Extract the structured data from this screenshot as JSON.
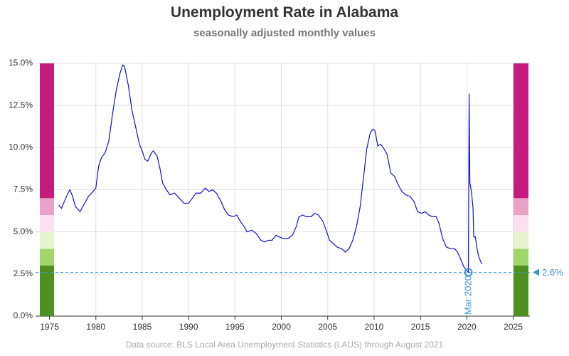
{
  "chart_data": {
    "type": "line",
    "title": "Unemployment Rate in Alabama",
    "subtitle": "seasonally adjusted monthly values",
    "caption": "Data source: BLS Local Area Unemployment Statistics (LAUS) through August 2021",
    "color": "#1010d0",
    "x": [
      1976.0,
      1976.3,
      1976.6,
      1977.0,
      1977.2,
      1977.5,
      1977.8,
      1978.3,
      1978.7,
      1979.2,
      1979.7,
      1980.0,
      1980.3,
      1980.6,
      1981.0,
      1981.4,
      1981.8,
      1982.2,
      1982.6,
      1982.9,
      1983.1,
      1983.5,
      1983.9,
      1984.3,
      1984.7,
      1985.0,
      1985.3,
      1985.6,
      1986.0,
      1986.2,
      1986.6,
      1986.9,
      1987.2,
      1987.6,
      1988.0,
      1988.5,
      1989.0,
      1989.5,
      1990.0,
      1990.4,
      1990.8,
      1991.3,
      1991.8,
      1992.2,
      1992.6,
      1993.0,
      1993.5,
      1993.9,
      1994.3,
      1994.8,
      1995.2,
      1995.6,
      1996.0,
      1996.3,
      1996.8,
      1997.3,
      1997.8,
      1998.2,
      1998.6,
      1999.0,
      1999.4,
      1999.8,
      2000.2,
      2000.7,
      2001.2,
      2001.6,
      2001.9,
      2002.3,
      2002.7,
      2003.2,
      2003.6,
      2004.0,
      2004.5,
      2004.9,
      2005.2,
      2005.6,
      2006.0,
      2006.5,
      2006.9,
      2007.3,
      2007.7,
      2008.1,
      2008.5,
      2008.9,
      2009.2,
      2009.6,
      2009.9,
      2010.1,
      2010.4,
      2010.7,
      2011.0,
      2011.4,
      2011.8,
      2012.2,
      2012.6,
      2013.0,
      2013.4,
      2013.9,
      2014.3,
      2014.7,
      2015.1,
      2015.5,
      2015.9,
      2016.3,
      2016.7,
      2017.0,
      2017.4,
      2017.8,
      2018.2,
      2018.7,
      2019.0,
      2019.4,
      2019.7,
      2020.0,
      2020.17,
      2020.25,
      2020.33,
      2020.5,
      2020.67,
      2020.75,
      2020.92,
      2021.1,
      2021.3,
      2021.6
    ],
    "values": [
      6.6,
      6.4,
      6.8,
      7.3,
      7.5,
      7.1,
      6.5,
      6.2,
      6.6,
      7.1,
      7.4,
      7.6,
      8.9,
      9.4,
      9.7,
      10.4,
      12.0,
      13.4,
      14.4,
      14.9,
      14.8,
      13.7,
      12.2,
      11.2,
      10.2,
      9.8,
      9.3,
      9.2,
      9.7,
      9.8,
      9.5,
      8.8,
      7.9,
      7.5,
      7.2,
      7.3,
      7.0,
      6.7,
      6.7,
      7.0,
      7.3,
      7.3,
      7.6,
      7.4,
      7.5,
      7.3,
      6.8,
      6.3,
      6.0,
      5.9,
      6.0,
      5.6,
      5.3,
      5.0,
      5.1,
      4.9,
      4.5,
      4.4,
      4.5,
      4.5,
      4.8,
      4.7,
      4.6,
      4.6,
      4.8,
      5.3,
      5.9,
      6.0,
      5.9,
      5.9,
      6.1,
      6.0,
      5.6,
      5.0,
      4.5,
      4.3,
      4.1,
      4.0,
      3.8,
      4.0,
      4.5,
      5.3,
      6.5,
      8.4,
      9.9,
      10.9,
      11.1,
      11.0,
      10.1,
      10.2,
      10.0,
      9.6,
      8.5,
      8.3,
      7.8,
      7.4,
      7.2,
      7.1,
      6.8,
      6.2,
      6.1,
      6.2,
      6.0,
      5.9,
      5.9,
      5.5,
      4.6,
      4.1,
      4.0,
      4.0,
      3.8,
      3.3,
      2.9,
      2.7,
      2.6,
      13.2,
      7.9,
      7.4,
      6.4,
      4.7,
      4.7,
      4.0,
      3.5,
      3.1
    ],
    "xlim": [
      1973.5,
      2026.8
    ],
    "xticks": [
      1975,
      1980,
      1985,
      1990,
      1995,
      2000,
      2005,
      2010,
      2015,
      2020,
      2025
    ],
    "ylim": [
      0,
      15
    ],
    "yticks": [
      {
        "value": 0,
        "label": "0.0%"
      },
      {
        "value": 2.5,
        "label": "2.5%"
      },
      {
        "value": 5,
        "label": "5.0%"
      },
      {
        "value": 7.5,
        "label": "7.5%"
      },
      {
        "value": 10,
        "label": "10.0%"
      },
      {
        "value": 12.5,
        "label": "12.5%"
      },
      {
        "value": 15,
        "label": "15.0%"
      }
    ],
    "grid": true,
    "bands": [
      {
        "from": 0,
        "to": 3,
        "color": "#4d9221"
      },
      {
        "from": 3,
        "to": 4,
        "color": "#a1d76a"
      },
      {
        "from": 4,
        "to": 5,
        "color": "#e6f5d0"
      },
      {
        "from": 5,
        "to": 6,
        "color": "#fde0ef"
      },
      {
        "from": 6,
        "to": 7,
        "color": "#e9a3c9"
      },
      {
        "from": 7,
        "to": 15,
        "color": "#c51b7d"
      }
    ],
    "reference": {
      "value": 2.6,
      "label": "2.6%",
      "color": "#3a9ad9"
    },
    "annotation": {
      "x": 2020.17,
      "label": "Mar 2020"
    }
  }
}
